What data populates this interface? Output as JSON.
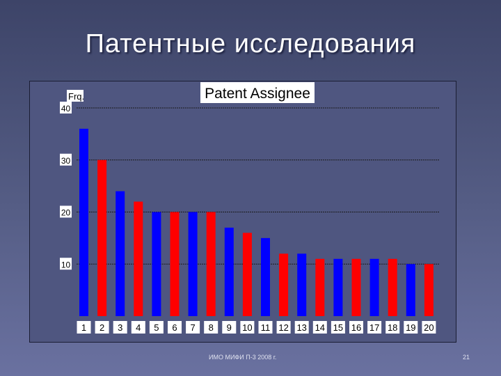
{
  "slide": {
    "title": "Патентные исследования",
    "footer": "ИМО МИФИ П-3 2008 г.",
    "page_number": "21"
  },
  "colors": {
    "odd_bar": "#0000ff",
    "even_bar": "#ff0000",
    "label_bg": "#ffffff",
    "grid": "#1a1a1a"
  },
  "chart_data": {
    "type": "bar",
    "title": "Patent Assignee",
    "ylabel": "Frq.",
    "xlabel": "",
    "categories": [
      "1",
      "2",
      "3",
      "4",
      "5",
      "6",
      "7",
      "8",
      "9",
      "10",
      "11",
      "12",
      "13",
      "14",
      "15",
      "16",
      "17",
      "18",
      "19",
      "20"
    ],
    "values": [
      36,
      30,
      24,
      22,
      20,
      20,
      20,
      20,
      17,
      16,
      15,
      12,
      12,
      11,
      11,
      11,
      11,
      11,
      10,
      10
    ],
    "yticks": [
      10,
      20,
      30,
      40
    ],
    "ylim": [
      0,
      40
    ],
    "grid": true,
    "legend": "none"
  }
}
